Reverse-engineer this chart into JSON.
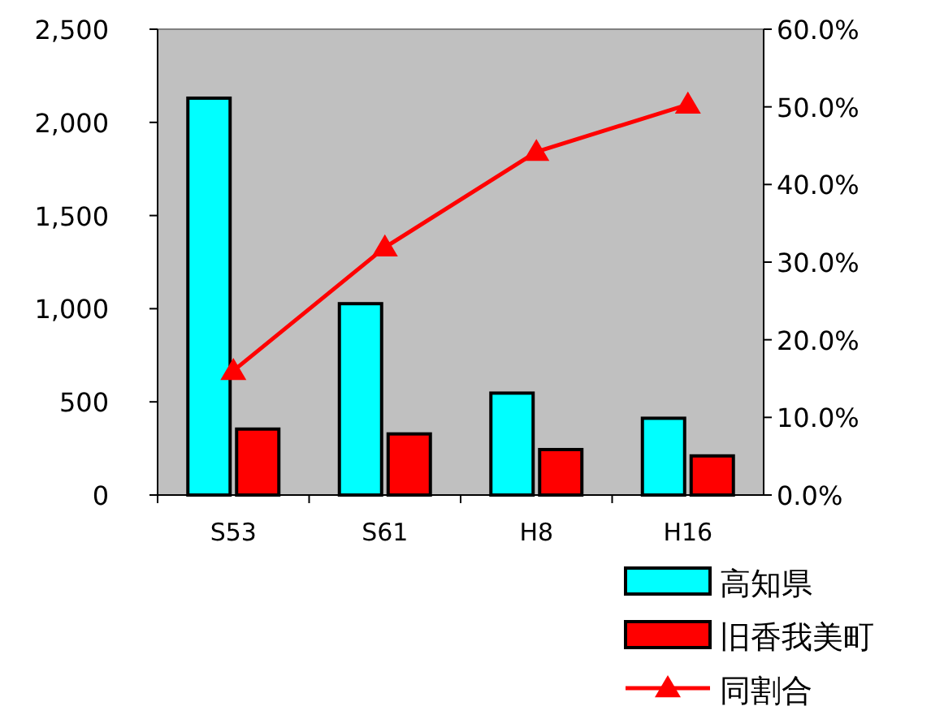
{
  "chart_data": {
    "type": "bar",
    "categories": [
      "S53",
      "S61",
      "H8",
      "H16"
    ],
    "series": [
      {
        "name": "高知県",
        "color": "#00ffff",
        "values": [
          2130,
          1027,
          547,
          412
        ]
      },
      {
        "name": "旧香我美町",
        "color": "#ff0000",
        "values": [
          354,
          328,
          244,
          210
        ]
      },
      {
        "name": "同割合",
        "type": "line",
        "axis": "y2",
        "color": "#ff0000",
        "marker": "triangle",
        "values": [
          16.0,
          31.9,
          44.2,
          50.3
        ]
      }
    ],
    "ylim": [
      0,
      2500
    ],
    "yticks": [
      0,
      500,
      {
        "value": 1000,
        "label": "1,000"
      },
      {
        "value": 1500,
        "label": "1,500"
      },
      {
        "value": 2000,
        "label": "2,000"
      },
      {
        "value": 2500,
        "label": "2,500"
      }
    ],
    "y2lim": [
      0,
      60
    ],
    "y2ticks": [
      {
        "value": 0,
        "label": "0.0%"
      },
      {
        "value": 10,
        "label": "10.0%"
      },
      {
        "value": 20,
        "label": "20.0%"
      },
      {
        "value": 30,
        "label": "30.0%"
      },
      {
        "value": 40,
        "label": "40.0%"
      },
      {
        "value": 50,
        "label": "50.0%"
      },
      {
        "value": 60,
        "label": "60.0%"
      }
    ],
    "legend": "bottom right"
  }
}
